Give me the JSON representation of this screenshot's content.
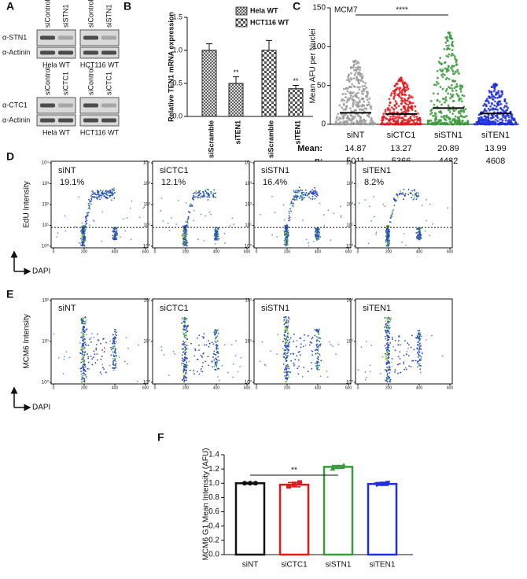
{
  "blots": {
    "panel_label": "A",
    "groups": [
      {
        "lanes": [
          "siControl",
          "siSTN1",
          "siControl",
          "siSTN1"
        ],
        "rows": [
          "α-STN1",
          "α-Actinin"
        ],
        "cells": [
          "Hela WT",
          "HCT116 WT"
        ]
      },
      {
        "lanes": [
          "siControl",
          "siCTC1",
          "siControl",
          "siCTC1"
        ],
        "rows": [
          "α-CTC1",
          "α-Actinin"
        ],
        "cells": [
          "Hela WT",
          "HCT116 WT"
        ]
      }
    ]
  },
  "chart_data": [
    {
      "type": "bar",
      "panel_label": "B",
      "y_label": "Relative TEN1 mRNA expression",
      "categories": [
        "siScramble",
        "siTEN1",
        "siScramble",
        "siTEN1"
      ],
      "series": [
        {
          "name": "Hela WT",
          "pattern": "grid",
          "values": [
            1.0,
            0.5,
            null,
            null
          ],
          "errors": [
            0.1,
            0.1,
            null,
            null
          ],
          "annotations": [
            null,
            "**",
            null,
            null
          ]
        },
        {
          "name": "HCT116 WT",
          "pattern": "checker",
          "values": [
            null,
            null,
            1.0,
            0.42
          ],
          "errors": [
            null,
            null,
            0.15,
            0.05
          ],
          "annotations": [
            null,
            null,
            null,
            "**"
          ]
        }
      ],
      "ylim": [
        0,
        1.5
      ],
      "yticks": [
        {
          "value": 0,
          "label": "0.0"
        },
        {
          "value": 0.5,
          "label": "0.5"
        },
        {
          "value": 1,
          "label": "1.0"
        },
        {
          "value": 1.5,
          "label": "1.5"
        }
      ],
      "legend": "top-right"
    },
    {
      "type": "swarm",
      "panel_label": "C",
      "title": "MCM7",
      "y_label": "Mean AFU per Nuclei",
      "categories": [
        "siNT",
        "siCTC1",
        "siSTN1",
        "siTEN1"
      ],
      "colors": [
        "#9a9a9a",
        "#e3191c",
        "#3c9a3c",
        "#1f2fe0"
      ],
      "values": [
        14.87,
        13.27,
        20.89,
        13.99
      ],
      "max": [
        82,
        60,
        118,
        52
      ],
      "n": [
        5011,
        5366,
        4482,
        4608
      ],
      "row_labels": [
        "Mean:",
        "n:"
      ],
      "significance": "****",
      "ylim": [
        0,
        150
      ],
      "yticks": [
        0,
        50,
        100,
        150
      ]
    },
    {
      "type": "bar",
      "panel_label": "F",
      "y_label": "MCM6 G1 Mean Intensity (AFU)",
      "categories": [
        "siNT",
        "siCTC1",
        "siSTN1",
        "siTEN1"
      ],
      "colors": [
        "#111111",
        "#e3191c",
        "#3c9a3c",
        "#1f2fe0"
      ],
      "values": [
        1.0,
        0.98,
        1.23,
        0.99
      ],
      "errors": [
        0.01,
        0.03,
        0.02,
        0.02
      ],
      "points": [
        [
          1.0,
          1.0,
          1.0
        ],
        [
          0.96,
          0.99,
          1.01
        ],
        [
          1.21,
          1.23,
          1.25
        ],
        [
          0.98,
          0.99,
          1.0
        ]
      ],
      "significance": "**",
      "ylim": [
        0,
        1.4
      ],
      "yticks": [
        {
          "value": 0,
          "label": "0.0"
        },
        {
          "value": 0.2,
          "label": "0.2"
        },
        {
          "value": 0.4,
          "label": "0.4"
        },
        {
          "value": 0.6,
          "label": "0.6"
        },
        {
          "value": 0.8,
          "label": "0.8"
        },
        {
          "value": 1,
          "label": "1.0"
        },
        {
          "value": 1.2,
          "label": "1.2"
        },
        {
          "value": 1.4,
          "label": "1.4"
        }
      ]
    }
  ],
  "flow_plots": [
    {
      "panel_label": "D",
      "y_label": "EdU Intensity",
      "x_label": "DAPI",
      "gate": 8,
      "xlim": [
        0,
        600
      ],
      "xticks": [
        0,
        200,
        400,
        600
      ],
      "ylim": [
        1,
        10000
      ],
      "yticks": [
        {
          "value": 1,
          "label": "10⁰"
        },
        {
          "value": 10,
          "label": "10¹"
        },
        {
          "value": 100,
          "label": "10²"
        },
        {
          "value": 1000,
          "label": "10³"
        },
        {
          "value": 10000,
          "label": "10⁴"
        }
      ],
      "plots": [
        {
          "label": "siNT",
          "percent": "19.1%"
        },
        {
          "label": "siCTC1",
          "percent": "12.1%"
        },
        {
          "label": "siSTN1",
          "percent": "16.4%"
        },
        {
          "label": "siTEN1",
          "percent": "8.2%"
        }
      ]
    },
    {
      "panel_label": "E",
      "y_label": "MCM6 Intensity",
      "x_label": "DAPI",
      "xlim": [
        0,
        600
      ],
      "xticks": [
        0,
        200,
        400,
        600
      ],
      "ylim": [
        1,
        100
      ],
      "yticks": [
        {
          "value": 1,
          "label": "10⁰"
        },
        {
          "value": 10,
          "label": "10¹"
        },
        {
          "value": 100,
          "label": "10²"
        }
      ],
      "plots": [
        {
          "label": "siNT"
        },
        {
          "label": "siCTC1"
        },
        {
          "label": "siSTN1"
        },
        {
          "label": "siTEN1"
        }
      ]
    }
  ]
}
